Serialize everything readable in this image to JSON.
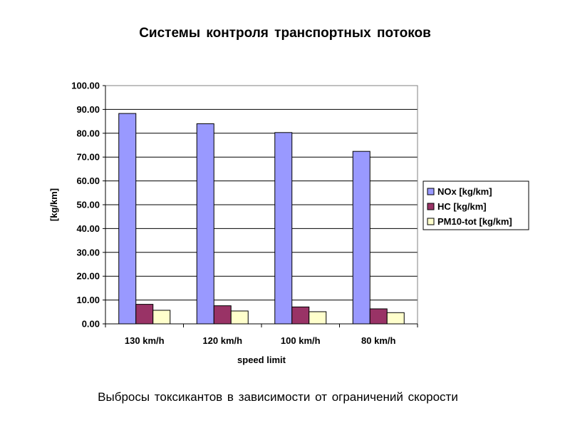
{
  "page": {
    "title": "Системы контроля транспортных потоков",
    "caption": "Выбросы токсикантов в зависимости от ограничений скорости"
  },
  "chart_data": {
    "type": "bar",
    "categories": [
      "130 km/h",
      "120 km/h",
      "100 km/h",
      "80 km/h"
    ],
    "series": [
      {
        "name": "NOx [kg/km]",
        "values": [
          88.3,
          84.0,
          80.3,
          72.4
        ],
        "color": "#9999ff"
      },
      {
        "name": "HC [kg/km]",
        "values": [
          8.2,
          7.6,
          7.1,
          6.3
        ],
        "color": "#993366"
      },
      {
        "name": "PM10-tot [kg/km]",
        "values": [
          5.7,
          5.4,
          5.1,
          4.7
        ],
        "color": "#ffffcc"
      }
    ],
    "xlabel": "speed limit",
    "ylabel": "[kg/km]",
    "ylim": [
      0,
      100
    ],
    "yticks": [
      "0.00",
      "10.00",
      "20.00",
      "30.00",
      "40.00",
      "50.00",
      "60.00",
      "70.00",
      "80.00",
      "90.00",
      "100.00"
    ],
    "ytick_values": [
      0,
      10,
      20,
      30,
      40,
      50,
      60,
      70,
      80,
      90,
      100
    ],
    "grid": true,
    "legend_position": "right"
  }
}
